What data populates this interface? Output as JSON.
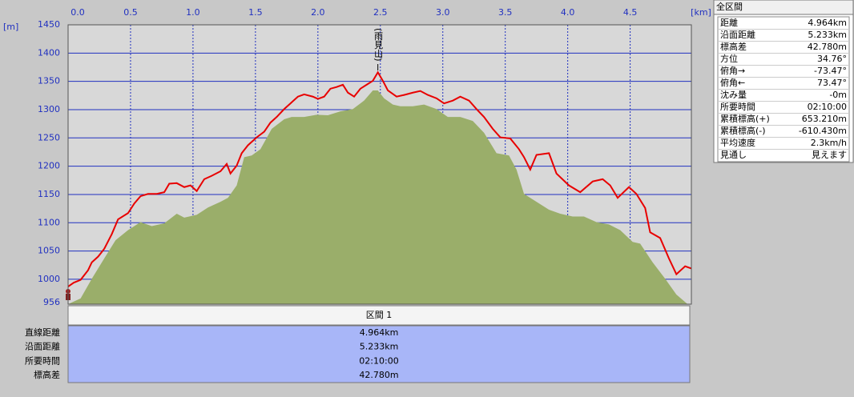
{
  "chart_data": {
    "type": "line",
    "xlabel": "[km]",
    "ylabel": "[m]",
    "xlim": [
      0,
      4.99
    ],
    "ylim": [
      956,
      1450
    ],
    "xticks": [
      {
        "value": 0,
        "label": "0.0"
      },
      0.5,
      {
        "value": 1,
        "label": "1.0"
      },
      1.5,
      {
        "value": 2,
        "label": "2.0"
      },
      2.5,
      {
        "value": 3,
        "label": "3.0"
      },
      3.5,
      {
        "value": 4,
        "label": "4.0"
      },
      4.5
    ],
    "yticks": [
      956,
      1000,
      1050,
      1100,
      1150,
      1200,
      1250,
      1300,
      1350,
      1400,
      1450
    ],
    "grid": true,
    "annotations": [
      {
        "text": "(雨見山)",
        "x": 2.48
      }
    ],
    "series": [
      {
        "type": "area",
        "color": "#9aae6a",
        "x": [
          0,
          0.1,
          0.19,
          0.29,
          0.38,
          0.48,
          0.58,
          0.67,
          0.77,
          0.87,
          0.93,
          1.03,
          1.12,
          1.22,
          1.28,
          1.35,
          1.41,
          1.47,
          1.54,
          1.63,
          1.73,
          1.79,
          1.89,
          1.99,
          2.08,
          2.18,
          2.28,
          2.37,
          2.44,
          2.48,
          2.53,
          2.6,
          2.66,
          2.76,
          2.85,
          2.95,
          3.04,
          3.14,
          3.24,
          3.33,
          3.43,
          3.53,
          3.59,
          3.65,
          3.75,
          3.85,
          3.94,
          4.04,
          4.13,
          4.23,
          4.33,
          4.42,
          4.52,
          4.58,
          4.68,
          4.78,
          4.87,
          4.96
        ],
        "values": [
          956,
          966,
          1001,
          1037,
          1069,
          1087,
          1101,
          1094,
          1099,
          1116,
          1109,
          1114,
          1127,
          1137,
          1144,
          1166,
          1216,
          1219,
          1230,
          1266,
          1283,
          1287,
          1287,
          1291,
          1290,
          1297,
          1301,
          1316,
          1334,
          1334,
          1320,
          1309,
          1306,
          1306,
          1309,
          1301,
          1287,
          1287,
          1280,
          1259,
          1223,
          1219,
          1194,
          1151,
          1137,
          1123,
          1116,
          1111,
          1111,
          1101,
          1097,
          1087,
          1066,
          1063,
          1030,
          1001,
          973,
          956
        ]
      },
      {
        "type": "line",
        "color": "#e80000",
        "x": [
          0,
          0.045,
          0.1,
          0.16,
          0.19,
          0.24,
          0.29,
          0.35,
          0.4,
          0.48,
          0.53,
          0.58,
          0.64,
          0.71,
          0.77,
          0.81,
          0.87,
          0.93,
          0.98,
          1.03,
          1.09,
          1.15,
          1.22,
          1.27,
          1.3,
          1.35,
          1.39,
          1.44,
          1.51,
          1.57,
          1.62,
          1.67,
          1.73,
          1.78,
          1.84,
          1.89,
          1.96,
          2.0,
          2.05,
          2.1,
          2.15,
          2.2,
          2.24,
          2.29,
          2.34,
          2.39,
          2.44,
          2.48,
          2.52,
          2.56,
          2.63,
          2.69,
          2.76,
          2.82,
          2.88,
          2.95,
          3.01,
          3.08,
          3.14,
          3.21,
          3.27,
          3.33,
          3.4,
          3.46,
          3.54,
          3.61,
          3.65,
          3.7,
          3.75,
          3.85,
          3.91,
          4.01,
          4.1,
          4.2,
          4.28,
          4.34,
          4.4,
          4.49,
          4.55,
          4.62,
          4.66,
          4.74,
          4.81,
          4.87,
          4.94,
          4.99
        ],
        "values": [
          987,
          994,
          999,
          1016,
          1030,
          1040,
          1054,
          1080,
          1106,
          1117,
          1134,
          1147,
          1151,
          1151,
          1154,
          1169,
          1170,
          1163,
          1166,
          1156,
          1177,
          1183,
          1191,
          1204,
          1187,
          1201,
          1223,
          1237,
          1251,
          1261,
          1277,
          1287,
          1301,
          1311,
          1323,
          1327,
          1323,
          1319,
          1323,
          1337,
          1340,
          1344,
          1330,
          1323,
          1337,
          1344,
          1351,
          1366,
          1351,
          1334,
          1323,
          1326,
          1330,
          1333,
          1326,
          1320,
          1311,
          1316,
          1323,
          1316,
          1301,
          1287,
          1266,
          1251,
          1249,
          1230,
          1216,
          1194,
          1220,
          1223,
          1187,
          1166,
          1154,
          1173,
          1177,
          1166,
          1144,
          1163,
          1151,
          1126,
          1083,
          1073,
          1037,
          1009,
          1023,
          1019
        ]
      }
    ]
  },
  "summary": {
    "title": "全区間",
    "rows": [
      [
        "距離",
        "4.964km"
      ],
      [
        "沿面距離",
        "5.233km"
      ],
      [
        "標高差",
        "42.780m"
      ],
      [
        "方位",
        "34.76°"
      ],
      [
        "俯角→",
        "-73.47°"
      ],
      [
        "俯角←",
        "73.47°"
      ],
      [
        "沈み量",
        "-0m"
      ],
      [
        "所要時間",
        "02:10:00"
      ],
      [
        "累積標高(+)",
        "653.210m"
      ],
      [
        "累積標高(-)",
        "-610.430m"
      ],
      [
        "平均速度",
        "2.3km/h"
      ],
      [
        "見通し",
        "見えます"
      ]
    ]
  },
  "section": {
    "title": "区間 1",
    "rows": [
      [
        "直線距離",
        "4.964km"
      ],
      [
        "沿面距離",
        "5.233km"
      ],
      [
        "所要時間",
        "02:10:00"
      ],
      [
        "標高差",
        "42.780m"
      ]
    ]
  }
}
